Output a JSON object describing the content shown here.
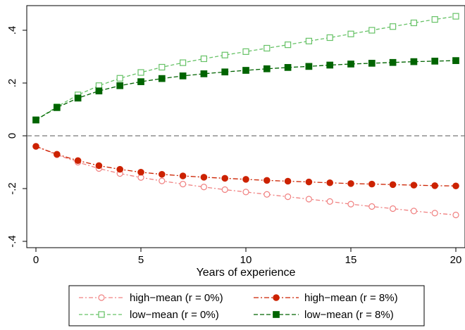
{
  "chart_data": {
    "type": "line",
    "title": "",
    "xlabel": "Years of experience",
    "ylabel": "",
    "xlim": [
      0,
      20
    ],
    "ylim": [
      -0.4,
      0.45
    ],
    "x_ticks": [
      0,
      5,
      10,
      15,
      20
    ],
    "x_tick_labels": [
      "0",
      "5",
      "10",
      "15",
      "20"
    ],
    "y_ticks": [
      -0.4,
      -0.2,
      0,
      0.2,
      0.4
    ],
    "y_tick_labels": [
      "-.4",
      "-.2",
      "0",
      ".2",
      ".4"
    ],
    "reference_line": {
      "y": 0,
      "style": "dashed",
      "color": "#777777"
    },
    "grid": false,
    "legend_position": "bottom",
    "x": [
      0,
      1,
      2,
      3,
      4,
      5,
      6,
      7,
      8,
      9,
      10,
      11,
      12,
      13,
      14,
      15,
      16,
      17,
      18,
      19,
      20
    ],
    "series": [
      {
        "name": "high−mean (r = 0%)",
        "color": "#f08080",
        "marker": "hollow-circle",
        "values": [
          -0.04,
          -0.072,
          -0.1,
          -0.124,
          -0.143,
          -0.158,
          -0.171,
          -0.183,
          -0.194,
          -0.204,
          -0.213,
          -0.222,
          -0.231,
          -0.24,
          -0.249,
          -0.259,
          -0.268,
          -0.276,
          -0.285,
          -0.293,
          -0.3
        ]
      },
      {
        "name": "high−mean (r = 8%)",
        "color": "#cc2200",
        "marker": "filled-circle",
        "values": [
          -0.04,
          -0.07,
          -0.094,
          -0.113,
          -0.127,
          -0.138,
          -0.146,
          -0.152,
          -0.157,
          -0.161,
          -0.165,
          -0.169,
          -0.172,
          -0.175,
          -0.178,
          -0.181,
          -0.183,
          -0.185,
          -0.187,
          -0.189,
          -0.19
        ]
      },
      {
        "name": "low−mean (r = 0%)",
        "color": "#66c266",
        "marker": "hollow-square",
        "values": [
          0.06,
          0.11,
          0.155,
          0.19,
          0.218,
          0.24,
          0.26,
          0.277,
          0.292,
          0.306,
          0.319,
          0.332,
          0.345,
          0.359,
          0.372,
          0.386,
          0.4,
          0.414,
          0.428,
          0.441,
          0.453
        ]
      },
      {
        "name": "low−mean (r = 8%)",
        "color": "#006400",
        "marker": "filled-square",
        "values": [
          0.06,
          0.107,
          0.143,
          0.17,
          0.19,
          0.205,
          0.217,
          0.227,
          0.235,
          0.242,
          0.248,
          0.254,
          0.259,
          0.263,
          0.268,
          0.272,
          0.275,
          0.278,
          0.281,
          0.283,
          0.285
        ]
      }
    ]
  }
}
